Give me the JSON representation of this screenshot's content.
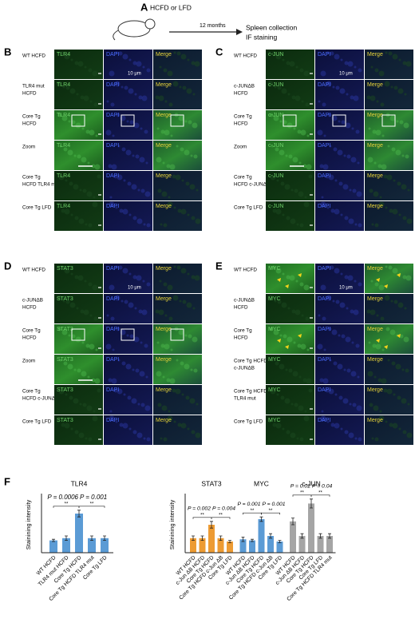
{
  "panel_A": {
    "label": "A",
    "diet": "HCFD or LFD",
    "duration": "12 months",
    "steps": [
      "Spleen collection",
      "IF staining"
    ]
  },
  "panels": [
    {
      "label": "B",
      "channels": [
        "TLR4",
        "DAPI",
        "Merge"
      ],
      "scale": "10 μm",
      "rows": [
        [
          "WT HCFD"
        ],
        [
          "TLR4 mut",
          "HCFD"
        ],
        [
          "Core Tg",
          "HCFD"
        ],
        [
          "Zoom"
        ],
        [
          "Core Tg",
          "HCFD TLR4 mut"
        ],
        [
          "Core Tg LFD"
        ]
      ]
    },
    {
      "label": "C",
      "channels": [
        "c-JUN",
        "DAPI",
        "Merge"
      ],
      "scale": "10 μm",
      "rows": [
        [
          "WT HCFD"
        ],
        [
          "c-JUNΔB",
          "HCFD"
        ],
        [
          "Core Tg",
          "HCFD"
        ],
        [
          "Zoom"
        ],
        [
          "Core Tg",
          "HCFD c-JUNΔB"
        ],
        [
          "Core Tg LFD"
        ]
      ]
    },
    {
      "label": "D",
      "channels": [
        "STAT3",
        "DAPI",
        "Merge"
      ],
      "scale": "10 μm",
      "rows": [
        [
          "WT HCFD"
        ],
        [
          "c-JUNΔB",
          "HCFD"
        ],
        [
          "Core Tg",
          "HCFD"
        ],
        [
          "Zoom"
        ],
        [
          "Core Tg",
          "HCFD c-JUNΔB"
        ],
        [
          "Core Tg LFD"
        ]
      ]
    },
    {
      "label": "E",
      "channels": [
        "MYC",
        "DAPI",
        "Merge"
      ],
      "scale": "10 μm",
      "rows": [
        [
          "WT HCFD"
        ],
        [
          "c-JUNΔB",
          "HCFD"
        ],
        [
          "Core Tg",
          "HCFD"
        ],
        [
          "Core Tg HCFD",
          "c-JUNΔB"
        ],
        [
          "Core Tg HCFD",
          "TLR4 mut"
        ],
        [
          "Core Tg LFD"
        ]
      ]
    }
  ],
  "panel_F": {
    "label": "F",
    "charts": [
      {
        "type": "bar",
        "y_label": "Stainining intensity",
        "ylim": [
          0,
          50
        ],
        "groups": [
          {
            "title": "TLR4",
            "color": "#5b9bd5",
            "categories": [
              "WT HCFD",
              "TLR4 mut HCFD",
              "Core Tg HCFD",
              "Core Tg HCFD TLR4 mut",
              "Core Tg LFD"
            ],
            "values": [
              11,
              13,
              35,
              13,
              13
            ],
            "errors": [
              1,
              2,
              3,
              2,
              2
            ],
            "annotations": [
              "P = 0.0006",
              "P = 0.001",
              "**",
              "**"
            ]
          }
        ]
      },
      {
        "type": "bar",
        "y_label": "Stainining intensity",
        "ylim": [
          0,
          50
        ],
        "groups": [
          {
            "title": "STAT3",
            "color": "#ed9b33",
            "categories": [
              "WT HCFD",
              "c-Jun ΔB HCFD",
              "Core Tg HCFD",
              "Core Tg HCFD c-Jun ΔB",
              "Core Tg LFD"
            ],
            "values": [
              13,
              13,
              25,
              13,
              10
            ],
            "errors": [
              2,
              2,
              3,
              2,
              1
            ],
            "annotations": [
              "P = 0.002",
              "P = 0.004",
              "**",
              "**"
            ]
          },
          {
            "title": "MYC",
            "color": "#5b9bd5",
            "categories": [
              "WT HCFD",
              "c-Jun ΔB HCFD",
              "Core Tg HCFD",
              "Core Tg HCFD c-Jun ΔB",
              "Core Tg LFD"
            ],
            "values": [
              12,
              11,
              30,
              15,
              10
            ],
            "errors": [
              2,
              1,
              2,
              2,
              1
            ],
            "annotations": [
              "P = 0.001",
              "P = 0.001",
              "**",
              "**"
            ]
          },
          {
            "title": "c-JUN",
            "color": "#a5a5a5",
            "categories": [
              "WT HCFD",
              "c-Jun ΔB HCFD",
              "Core Tg HCFD",
              "Core Tg LFD",
              "Core Tg HCFD TLR4 mut"
            ],
            "values": [
              28,
              15,
              44,
              15,
              15
            ],
            "errors": [
              3,
              2,
              4,
              2,
              2
            ],
            "annotations": [
              "P = 0.02",
              "P = 0.04",
              "**",
              "**"
            ]
          }
        ]
      }
    ]
  }
}
